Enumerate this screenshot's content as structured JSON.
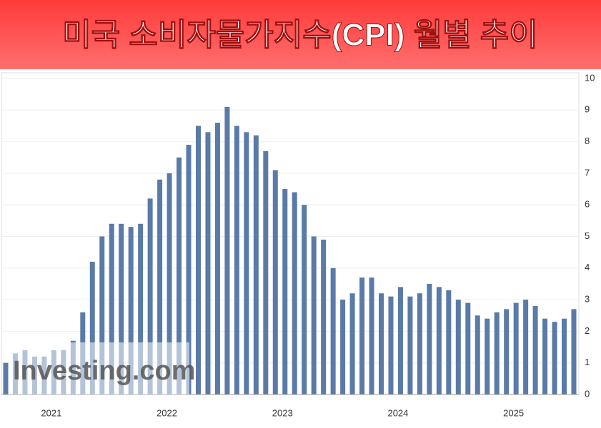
{
  "chart_data": {
    "type": "bar",
    "title": "미국 소비자물가지수(CPI) 월별 추이",
    "watermark": "Investing.com",
    "categories": [
      null,
      null,
      null,
      null,
      null,
      null,
      "2021",
      null,
      null,
      null,
      null,
      null,
      null,
      null,
      null,
      null,
      null,
      null,
      "2022",
      null,
      null,
      null,
      null,
      null,
      null,
      null,
      null,
      null,
      null,
      null,
      "2023",
      null,
      null,
      null,
      null,
      null,
      null,
      null,
      null,
      null,
      null,
      null,
      "2024",
      null,
      null,
      null,
      null,
      null,
      null,
      null,
      null,
      null,
      null,
      null,
      "2025",
      null,
      null,
      null,
      null,
      null
    ],
    "values": [
      1.0,
      1.3,
      1.4,
      1.2,
      1.2,
      1.4,
      1.4,
      1.7,
      2.6,
      4.2,
      5.0,
      5.4,
      5.4,
      5.3,
      5.4,
      6.2,
      6.8,
      7.0,
      7.5,
      7.9,
      8.5,
      8.3,
      8.6,
      9.1,
      8.5,
      8.3,
      8.2,
      7.7,
      7.1,
      6.5,
      6.4,
      6.0,
      5.0,
      4.9,
      4.0,
      3.0,
      3.2,
      3.7,
      3.7,
      3.2,
      3.1,
      3.4,
      3.1,
      3.2,
      3.5,
      3.4,
      3.3,
      3.0,
      2.9,
      2.5,
      2.4,
      2.6,
      2.7,
      2.9,
      3.0,
      2.8,
      2.4,
      2.3,
      2.4,
      2.7
    ],
    "color": "#5a7aa8",
    "ylim": [
      0,
      10
    ],
    "yticks": [
      0,
      1,
      2,
      3,
      4,
      5,
      6,
      7,
      8,
      9,
      10
    ],
    "grid": true
  }
}
